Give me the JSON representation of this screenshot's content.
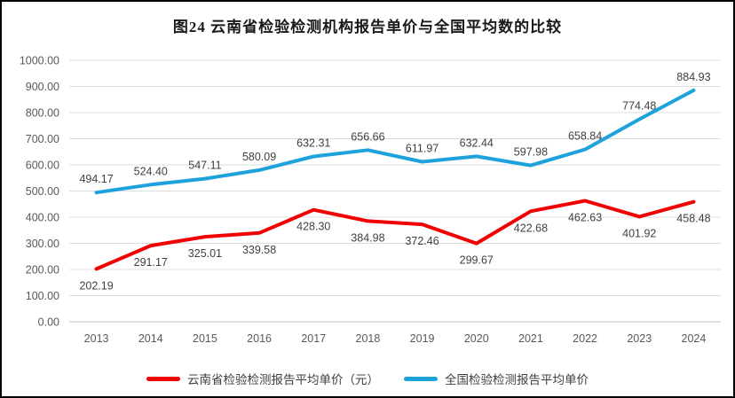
{
  "figure": {
    "title": "图24 云南省检验检测机构报告单价与全国平均数的比较"
  },
  "chart_data": {
    "type": "line",
    "title": "图24 云南省检验检测机构报告单价与全国平均数的比较",
    "categories": [
      "2013",
      "2014",
      "2015",
      "2016",
      "2017",
      "2018",
      "2019",
      "2020",
      "2021",
      "2022",
      "2023",
      "2024"
    ],
    "series": [
      {
        "name": "云南省检验检测报告平均单价（元）",
        "color": "#f00000",
        "values": [
          202.19,
          291.17,
          325.01,
          339.58,
          428.3,
          384.98,
          372.46,
          299.67,
          422.68,
          462.63,
          401.92,
          458.48
        ],
        "label_position": "below"
      },
      {
        "name": "全国检验检测报告平均单价",
        "color": "#1ea2db",
        "values": [
          494.17,
          524.4,
          547.11,
          580.09,
          632.31,
          656.66,
          611.97,
          632.44,
          597.98,
          658.84,
          774.48,
          884.93
        ],
        "label_position": "above"
      }
    ],
    "ylim": [
      0,
      1000
    ],
    "ytick_step": 100,
    "yticks": [
      "0.00",
      "100.00",
      "200.00",
      "300.00",
      "400.00",
      "500.00",
      "600.00",
      "700.00",
      "800.00",
      "900.00",
      "1000.00"
    ],
    "grid": true,
    "legend_position": "bottom",
    "data_labels_visible": true
  }
}
